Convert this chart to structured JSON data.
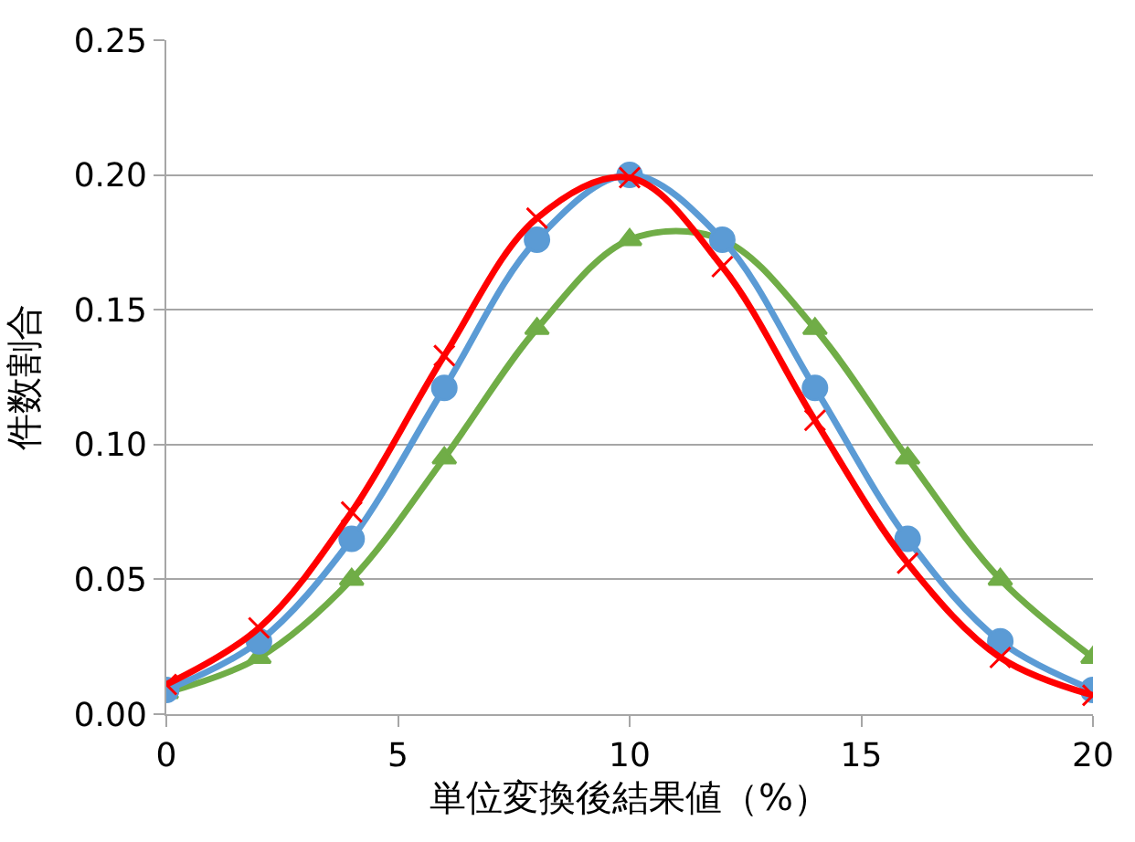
{
  "chart_data": {
    "type": "line",
    "xlabel": "単位変換後結果値（%）",
    "ylabel": "件数割合",
    "x": [
      0,
      2,
      4,
      6,
      8,
      10,
      12,
      14,
      16,
      18,
      20
    ],
    "series": [
      {
        "color": "#70ad47",
        "marker": "triangle",
        "values": [
          0.008,
          0.021,
          0.05,
          0.095,
          0.143,
          0.176,
          0.176,
          0.143,
          0.095,
          0.05,
          0.021
        ]
      },
      {
        "color": "#5b9bd5",
        "marker": "circle",
        "values": [
          0.009,
          0.027,
          0.065,
          0.121,
          0.176,
          0.2,
          0.176,
          0.121,
          0.065,
          0.027,
          0.009
        ]
      },
      {
        "color": "#ff0000",
        "marker": "cross",
        "values": [
          0.011,
          0.032,
          0.075,
          0.133,
          0.184,
          0.199,
          0.166,
          0.109,
          0.056,
          0.021,
          0.007
        ]
      }
    ],
    "xlim": [
      0,
      20
    ],
    "xticks": [
      0,
      5,
      10,
      15,
      20
    ],
    "ylim": [
      0,
      0.25
    ],
    "yticks": [
      {
        "value": 0,
        "label": "0.00"
      },
      {
        "value": 0.05,
        "label": "0.05"
      },
      {
        "value": 0.1,
        "label": "0.10"
      },
      {
        "value": 0.15,
        "label": "0.15"
      },
      {
        "value": 0.2,
        "label": "0.20"
      },
      {
        "value": 0.25,
        "label": "0.25"
      }
    ],
    "grid": "y",
    "line_style": "solid"
  }
}
